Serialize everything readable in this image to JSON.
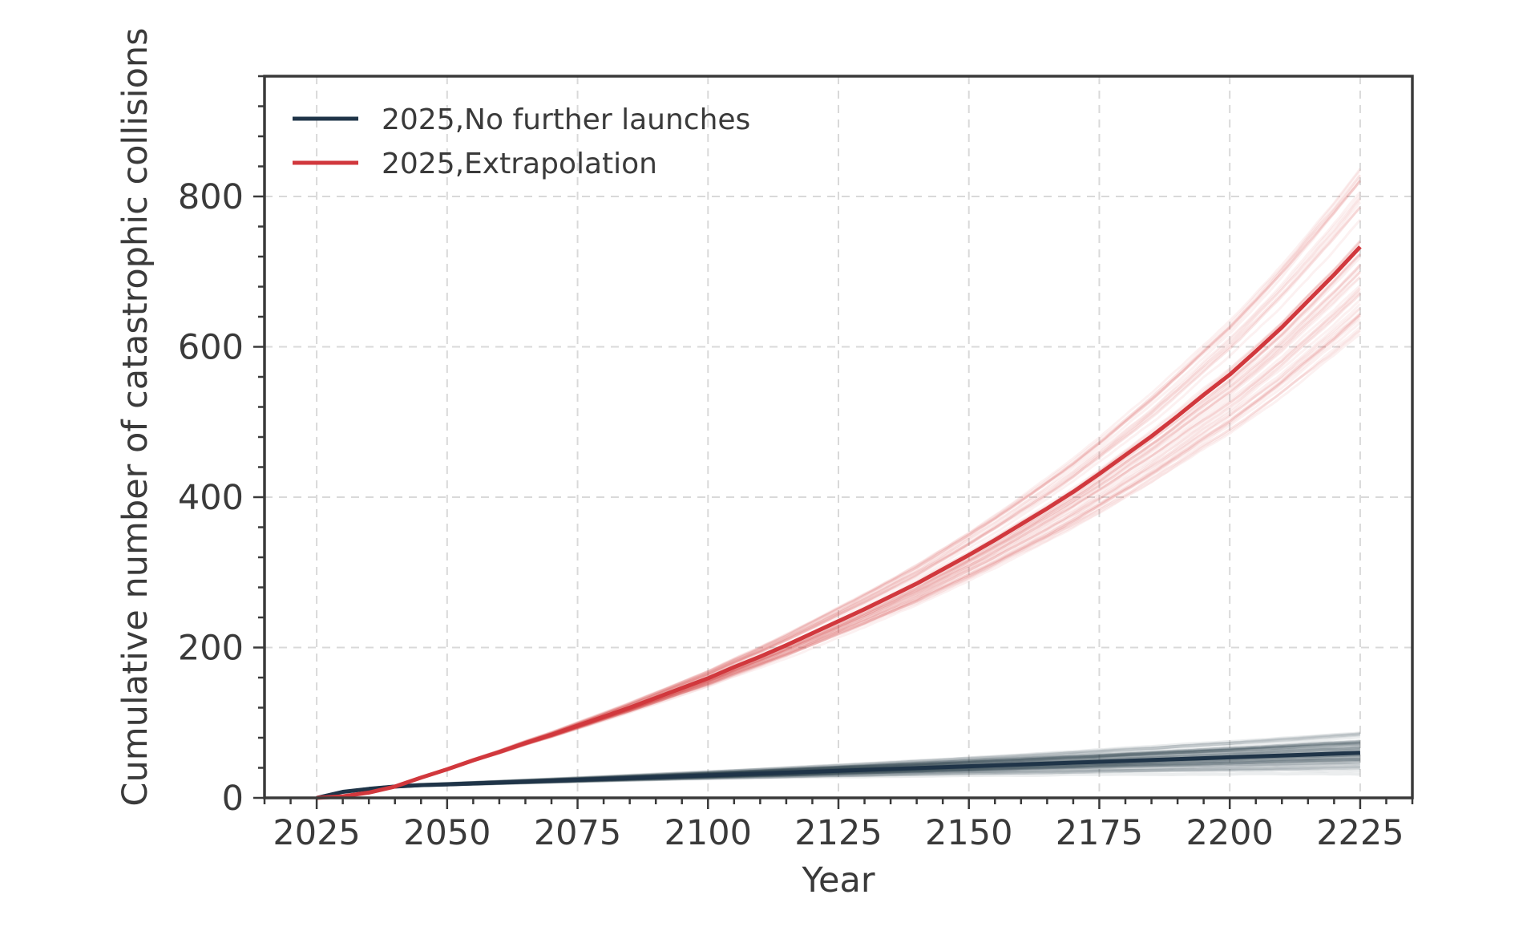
{
  "chart_data": {
    "type": "line",
    "title": "",
    "xlabel": "Year",
    "ylabel": "Cumulative number of catastrophic collisions",
    "xlim": [
      2015,
      2235
    ],
    "ylim": [
      0,
      960
    ],
    "xticks": [
      2025,
      2050,
      2075,
      2100,
      2125,
      2150,
      2175,
      2200,
      2225
    ],
    "yticks": [
      0,
      200,
      400,
      600,
      800
    ],
    "x_minor_step": 5,
    "y_minor_step": 40,
    "grid": true,
    "legend_position": "top-left",
    "series": [
      {
        "name": "2025,No further launches",
        "color": "#1f3448",
        "ensemble_runs": 60,
        "ensemble_spread_end": 25,
        "x": [
          2025,
          2030,
          2035,
          2040,
          2045,
          2050,
          2075,
          2100,
          2125,
          2150,
          2175,
          2200,
          2225
        ],
        "values": [
          0,
          8,
          12,
          15,
          17,
          18,
          24,
          30,
          36,
          42,
          48,
          54,
          60
        ]
      },
      {
        "name": "2025,Extrapolation",
        "color": "#d1383d",
        "ensemble_runs": 60,
        "ensemble_spread_end": 130,
        "x": [
          2025,
          2030,
          2035,
          2040,
          2045,
          2050,
          2055,
          2060,
          2065,
          2070,
          2075,
          2080,
          2085,
          2090,
          2095,
          2100,
          2105,
          2110,
          2115,
          2120,
          2125,
          2130,
          2135,
          2140,
          2145,
          2150,
          2155,
          2160,
          2165,
          2170,
          2175,
          2180,
          2185,
          2190,
          2195,
          2200,
          2205,
          2210,
          2215,
          2220,
          2225
        ],
        "values": [
          0,
          2,
          7,
          15,
          27,
          38,
          50,
          61,
          73,
          84,
          96,
          108,
          120,
          133,
          146,
          159,
          174,
          188,
          203,
          219,
          235,
          251,
          268,
          285,
          304,
          323,
          343,
          364,
          385,
          407,
          431,
          456,
          481,
          508,
          536,
          563,
          594,
          626,
          661,
          696,
          733
        ]
      }
    ]
  }
}
